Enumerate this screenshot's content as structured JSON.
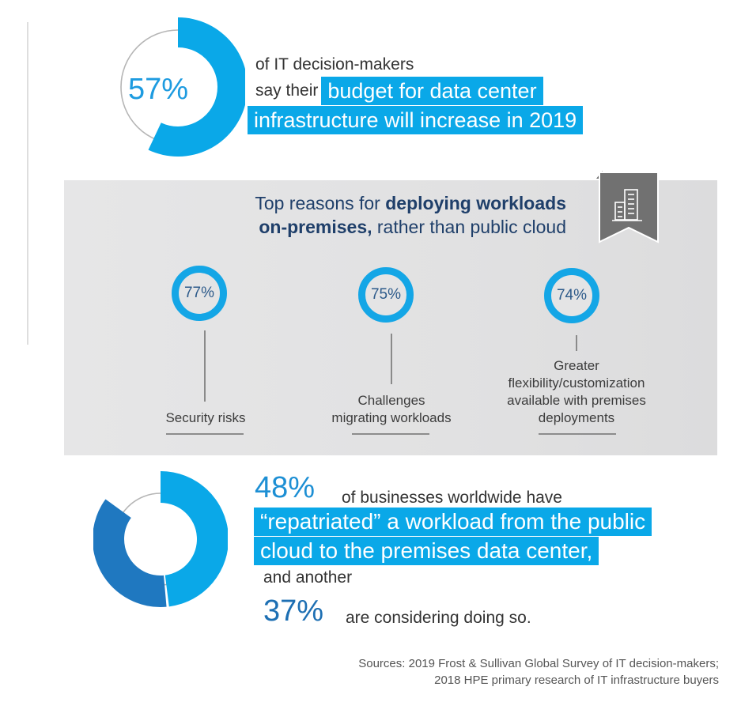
{
  "colors": {
    "accent": "#0aa8e8",
    "accent_dark": "#1f78c0",
    "heading_navy": "#1f3f6a",
    "panel_gray": "#e3e3e4",
    "ribbon_gray": "#717171"
  },
  "budget_stat": {
    "value_percent": 57,
    "label": "57%",
    "line1": "of IT decision-makers",
    "line2_plain": "say their",
    "line2_highlight": "budget for data center",
    "line3_highlight": "infrastructure will increase in 2019"
  },
  "reasons_panel": {
    "icon": "building-icon",
    "heading_part1": "Top reasons for ",
    "heading_bold1": "deploying workloads",
    "heading_bold2": "on-premises,",
    "heading_part2": " rather than public cloud",
    "items": [
      {
        "value_percent": 77,
        "label": "77%",
        "text_lines": [
          "Security risks"
        ]
      },
      {
        "value_percent": 75,
        "label": "75%",
        "text_lines": [
          "Challenges",
          "migrating workloads"
        ]
      },
      {
        "value_percent": 74,
        "label": "74%",
        "text_lines": [
          "Greater",
          "flexibility/customization",
          "available with premises",
          "deployments"
        ]
      }
    ]
  },
  "repatriation_stat": {
    "repatriated_percent": 48,
    "considering_percent": 37,
    "value1_label": "48%",
    "line1": "of businesses worldwide have",
    "highlight1": "“repatriated” a workload from the public",
    "highlight2": "cloud to the premises data center,",
    "and_another": "and another",
    "value2_label": "37%",
    "considering": "are considering doing so."
  },
  "sources": {
    "line1": "Sources: 2019 Frost & Sullivan Global Survey of IT decision-makers;",
    "line2": "2018 HPE primary research of IT infrastructure buyers"
  }
}
